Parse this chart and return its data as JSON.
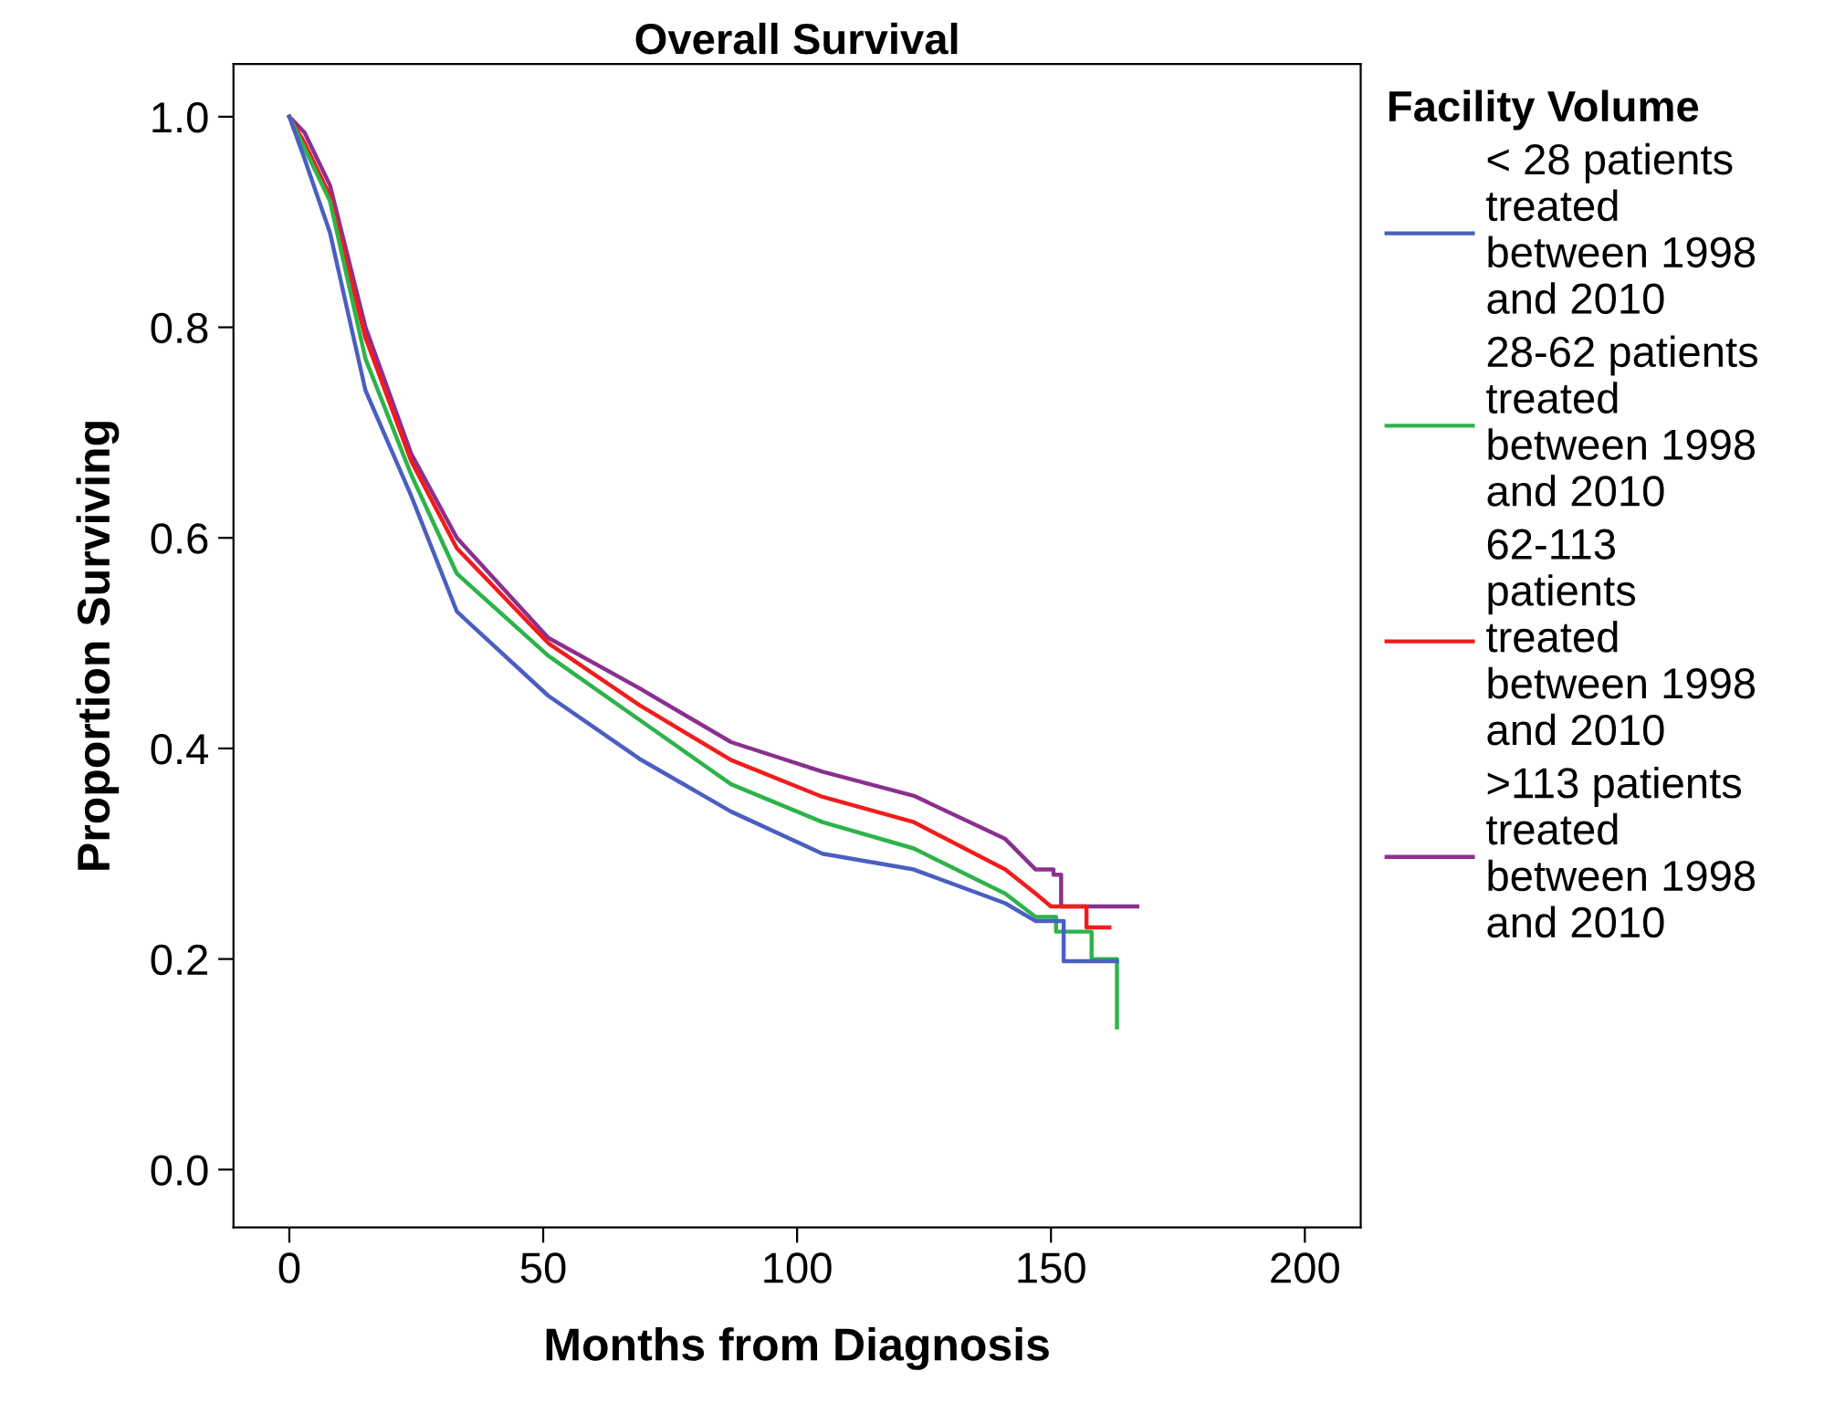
{
  "chart_data": {
    "type": "line",
    "title": "Overall Survival",
    "xlabel": "Months from Diagnosis",
    "ylabel": "Proportion Surviving",
    "legend_title": "Facility Volume",
    "legend": "right",
    "xlim": [
      -11,
      211
    ],
    "ylim": [
      -0.055,
      1.05
    ],
    "xticks": [
      0,
      50,
      100,
      150,
      200
    ],
    "yticks": [
      {
        "value": 0,
        "label": "0.0"
      },
      {
        "value": 0.2,
        "label": "0.2"
      },
      {
        "value": 0.4,
        "label": "0.4"
      },
      {
        "value": 0.6,
        "label": "0.6"
      },
      {
        "value": 0.8,
        "label": "0.8"
      },
      {
        "value": 1,
        "label": "1.0"
      }
    ],
    "grid": false,
    "line_style": "solid",
    "marker": "none",
    "series": [
      {
        "name": "< 28 patients treated between 1998 and 2010",
        "color": "#4a5fc1",
        "x": [
          0,
          3,
          8,
          15,
          24,
          33,
          51,
          69,
          87,
          105,
          123,
          141,
          147,
          152.5,
          152.5,
          163
        ],
        "values": [
          1.0,
          0.96,
          0.89,
          0.74,
          0.64,
          0.53,
          0.45,
          0.39,
          0.34,
          0.3,
          0.285,
          0.253,
          0.236,
          0.236,
          0.198,
          0.198
        ]
      },
      {
        "name": "28-62 patients treated between 1998 and 2010",
        "color": "#2db34a",
        "x": [
          0,
          3,
          8,
          15,
          24,
          33,
          51,
          69,
          87,
          105,
          123,
          141,
          147,
          151,
          151,
          158,
          158,
          163,
          163
        ],
        "values": [
          1.0,
          0.97,
          0.92,
          0.77,
          0.66,
          0.566,
          0.488,
          0.427,
          0.366,
          0.33,
          0.305,
          0.262,
          0.24,
          0.24,
          0.226,
          0.226,
          0.2,
          0.2,
          0.135
        ]
      },
      {
        "name": "62-113 patients treated between 1998 and 2010",
        "color": "#f21c1c",
        "x": [
          0,
          3,
          8,
          15,
          24,
          33,
          51,
          69,
          87,
          105,
          123,
          141,
          147,
          150,
          157,
          157,
          161.5
        ],
        "values": [
          1.0,
          0.975,
          0.925,
          0.79,
          0.673,
          0.59,
          0.5,
          0.441,
          0.389,
          0.354,
          0.33,
          0.285,
          0.262,
          0.25,
          0.25,
          0.23,
          0.23
        ]
      },
      {
        "name": ">113 patients treated between 1998 and 2010",
        "color": "#8b2f8f",
        "x": [
          0,
          3,
          8,
          15,
          24,
          33,
          51,
          69,
          87,
          105,
          123,
          141,
          147,
          150.5,
          150.5,
          152,
          152,
          167
        ],
        "values": [
          1.0,
          0.985,
          0.935,
          0.8,
          0.68,
          0.6,
          0.505,
          0.457,
          0.406,
          0.378,
          0.355,
          0.314,
          0.285,
          0.285,
          0.28,
          0.28,
          0.25,
          0.25
        ]
      }
    ]
  }
}
